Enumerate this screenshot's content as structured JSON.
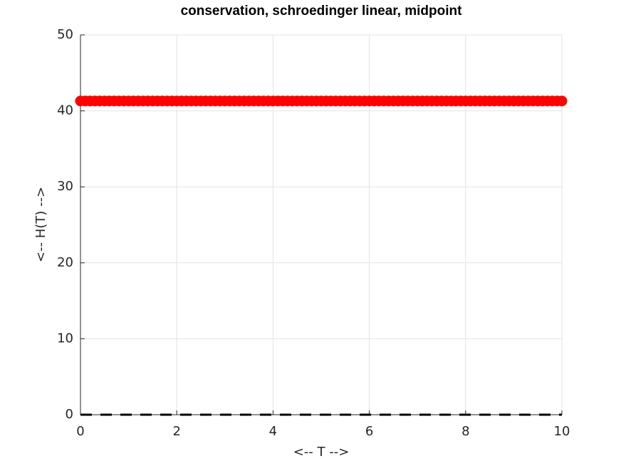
{
  "chart_data": {
    "type": "line",
    "title": "conservation, schroedinger linear, midpoint",
    "x_label": "<-- T -->",
    "y_label": "<-- H(T) -->",
    "xlim": [
      0,
      10
    ],
    "xticks": [
      0,
      2,
      4,
      6,
      8,
      10
    ],
    "ylim": [
      0,
      50
    ],
    "yticks": [
      0,
      10,
      20,
      30,
      40,
      50
    ],
    "grid": true,
    "series": [
      {
        "color": "#ff0000",
        "marker": "circle",
        "line": false,
        "x": [
          0,
          0.1,
          0.2,
          0.3,
          0.4,
          0.5,
          0.6,
          0.7,
          0.8,
          0.9,
          1,
          1.1,
          1.2,
          1.3,
          1.4,
          1.5,
          1.6,
          1.7,
          1.8,
          1.9,
          2,
          2.1,
          2.2,
          2.3,
          2.4,
          2.5,
          2.6,
          2.7,
          2.8,
          2.9,
          3,
          3.1,
          3.2,
          3.3,
          3.4,
          3.5,
          3.6,
          3.7,
          3.8,
          3.9,
          4,
          4.1,
          4.2,
          4.3,
          4.4,
          4.5,
          4.6,
          4.7,
          4.8,
          4.9,
          5,
          5.1,
          5.2,
          5.3,
          5.4,
          5.5,
          5.6,
          5.7,
          5.8,
          5.9,
          6,
          6.1,
          6.2,
          6.3,
          6.4,
          6.5,
          6.6,
          6.7,
          6.8,
          6.9,
          7,
          7.1,
          7.2,
          7.3,
          7.4,
          7.5,
          7.6,
          7.7,
          7.8,
          7.9,
          8,
          8.1,
          8.2,
          8.3,
          8.4,
          8.5,
          8.6,
          8.7,
          8.8,
          8.9,
          9,
          9.1,
          9.2,
          9.3,
          9.4,
          9.5,
          9.6,
          9.7,
          9.8,
          9.9,
          10
        ],
        "values": [
          41.3,
          41.3,
          41.3,
          41.3,
          41.3,
          41.3,
          41.3,
          41.3,
          41.3,
          41.3,
          41.3,
          41.3,
          41.3,
          41.3,
          41.3,
          41.3,
          41.3,
          41.3,
          41.3,
          41.3,
          41.3,
          41.3,
          41.3,
          41.3,
          41.3,
          41.3,
          41.3,
          41.3,
          41.3,
          41.3,
          41.3,
          41.3,
          41.3,
          41.3,
          41.3,
          41.3,
          41.3,
          41.3,
          41.3,
          41.3,
          41.3,
          41.3,
          41.3,
          41.3,
          41.3,
          41.3,
          41.3,
          41.3,
          41.3,
          41.3,
          41.3,
          41.3,
          41.3,
          41.3,
          41.3,
          41.3,
          41.3,
          41.3,
          41.3,
          41.3,
          41.3,
          41.3,
          41.3,
          41.3,
          41.3,
          41.3,
          41.3,
          41.3,
          41.3,
          41.3,
          41.3,
          41.3,
          41.3,
          41.3,
          41.3,
          41.3,
          41.3,
          41.3,
          41.3,
          41.3,
          41.3,
          41.3,
          41.3,
          41.3,
          41.3,
          41.3,
          41.3,
          41.3,
          41.3,
          41.3,
          41.3,
          41.3,
          41.3,
          41.3,
          41.3,
          41.3,
          41.3,
          41.3,
          41.3,
          41.3,
          41.3
        ]
      },
      {
        "color": "#000000",
        "marker": "none",
        "line": true,
        "dash": true,
        "x": [
          0,
          10
        ],
        "values": [
          0,
          0
        ]
      }
    ]
  }
}
